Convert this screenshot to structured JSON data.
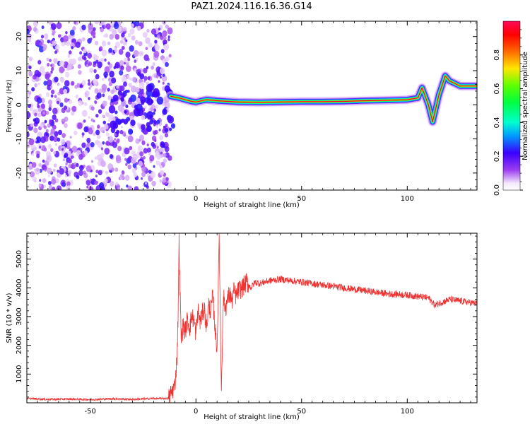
{
  "title": "PAZ1.2024.116.16.36.G14",
  "chart_data": [
    {
      "type": "heatmap",
      "xlabel": "Height of straight line (km)",
      "ylabel": "Frequency (Hz)",
      "xlim": [
        -80,
        133
      ],
      "ylim": [
        -25,
        24.5
      ],
      "xticks": [
        -50,
        0,
        50,
        100
      ],
      "yticks": [
        -20,
        -10,
        0,
        10,
        20
      ],
      "colorbar": {
        "label": "Normalized spectral amplitude",
        "range": [
          0,
          1
        ],
        "ticks": [
          0.0,
          0.2,
          0.4,
          0.6,
          0.8
        ],
        "colormap": "gist_rainbow_r"
      },
      "ridge": {
        "x": [
          -12,
          -8,
          -5,
          -2,
          0,
          5,
          10,
          15,
          20,
          30,
          40,
          50,
          60,
          70,
          80,
          90,
          100,
          105,
          107,
          110,
          112,
          115,
          118,
          120,
          125,
          133
        ],
        "y": [
          2.5,
          2.0,
          1.5,
          1.0,
          0.8,
          1.5,
          1.2,
          1.0,
          0.8,
          0.7,
          0.8,
          0.9,
          0.9,
          1.0,
          1.2,
          1.3,
          1.5,
          2.0,
          5.0,
          0.0,
          -5.0,
          3.0,
          8.5,
          7.0,
          5.5,
          5.5
        ],
        "peak_amplitude": 0.95
      },
      "noise_region": {
        "x_range": [
          -80,
          -12
        ],
        "y_range": [
          -25,
          24.5
        ],
        "amplitude_range": [
          0.05,
          0.25
        ]
      }
    },
    {
      "type": "line",
      "xlabel": "Height of straight line (km)",
      "ylabel": "SNR (10 * v/v)",
      "xlim": [
        -80,
        133
      ],
      "ylim": [
        0,
        5900
      ],
      "xticks": [
        -50,
        0,
        50,
        100
      ],
      "yticks": [
        1000,
        2000,
        3000,
        4000,
        5000
      ],
      "color": "#ee3333",
      "series": [
        {
          "x": [
            -80,
            -70,
            -60,
            -50,
            -40,
            -30,
            -20,
            -13,
            -10,
            -9,
            -8.5,
            -8,
            -7,
            -6,
            -5,
            -4,
            -3,
            -2,
            -1,
            0,
            1,
            2,
            3,
            4,
            5,
            6,
            7,
            8,
            9,
            10,
            10.5,
            11,
            11.5,
            12,
            13,
            14,
            15,
            16,
            17,
            18,
            19,
            20,
            22,
            24,
            26,
            28,
            30,
            35,
            40,
            45,
            50,
            60,
            70,
            80,
            90,
            100,
            110,
            113,
            120,
            133
          ],
          "y": [
            150,
            120,
            130,
            110,
            140,
            120,
            150,
            150,
            600,
            1500,
            2800,
            5600,
            2200,
            2700,
            2500,
            2900,
            2600,
            3000,
            2900,
            2400,
            3200,
            2800,
            3100,
            3300,
            2600,
            3400,
            3200,
            3700,
            2600,
            1900,
            3500,
            5900,
            3300,
            500,
            3700,
            3300,
            3600,
            3800,
            3500,
            3900,
            3700,
            3900,
            4000,
            4200,
            4000,
            4200,
            4150,
            4250,
            4300,
            4250,
            4200,
            4100,
            4000,
            3900,
            3800,
            3750,
            3650,
            3400,
            3600,
            3450
          ]
        }
      ]
    }
  ]
}
